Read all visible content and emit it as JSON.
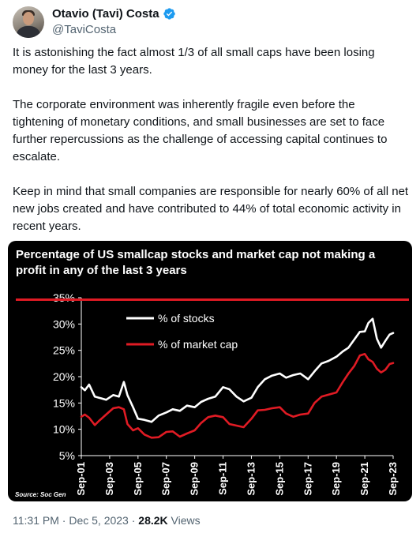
{
  "author": {
    "display_name": "Otavio (Tavi) Costa",
    "handle": "@TaviCosta",
    "verified_icon": "verified-badge-icon",
    "verified_color": "#1d9bf0"
  },
  "tweet": {
    "paragraphs": [
      "It is astonishing the fact almost 1/3 of all small caps have been losing money for the last 3 years.",
      "The corporate environment was inherently fragile even before the tightening of monetary conditions, and small businesses are set to face further repercussions as the challenge of accessing capital continues to escalate.",
      "Keep in mind that small companies are responsible for nearly 60% of all net new jobs created and have contributed to 44% of total economic activity in recent years."
    ]
  },
  "chart_data": {
    "type": "line",
    "title": "Percentage of US smallcap stocks and market cap not making a profit in any of the last 3 years",
    "xlabel": "",
    "ylabel": "",
    "source": "Source: Soc Gen",
    "ylim": [
      5,
      35
    ],
    "y_ticks": [
      "35%",
      "30%",
      "25%",
      "20%",
      "15%",
      "10%",
      "5%"
    ],
    "x_range": [
      2001.75,
      2023.75
    ],
    "x_ticks": [
      "Sep-01",
      "Sep-03",
      "Sep-05",
      "Sep-07",
      "Sep-09",
      "Sep-11",
      "Sep-13",
      "Sep-15",
      "Sep-17",
      "Sep-19",
      "Sep-21",
      "Sep-23"
    ],
    "grid": false,
    "legend_position": "top-left",
    "background": "#000000",
    "series": [
      {
        "name": "% of stocks",
        "color": "#ffffff",
        "x": [
          2001.75,
          2002.0,
          2002.3,
          2002.7,
          2003.0,
          2003.5,
          2004.0,
          2004.4,
          2004.75,
          2005.0,
          2005.4,
          2005.75,
          2006.2,
          2006.7,
          2007.2,
          2007.75,
          2008.2,
          2008.7,
          2009.2,
          2009.75,
          2010.2,
          2010.7,
          2011.2,
          2011.75,
          2012.2,
          2012.7,
          2013.2,
          2013.75,
          2014.2,
          2014.7,
          2015.2,
          2015.75,
          2016.2,
          2016.7,
          2017.2,
          2017.75,
          2018.2,
          2018.7,
          2019.2,
          2019.75,
          2020.2,
          2020.6,
          2021.0,
          2021.4,
          2021.75,
          2022.0,
          2022.3,
          2022.6,
          2022.9,
          2023.2,
          2023.5,
          2023.75
        ],
        "values": [
          18.0,
          17.4,
          18.5,
          16.2,
          16.0,
          15.6,
          16.5,
          16.2,
          19.0,
          16.5,
          14.2,
          12.0,
          11.8,
          11.4,
          12.6,
          13.2,
          13.8,
          13.5,
          14.5,
          14.2,
          15.2,
          15.8,
          16.2,
          18.0,
          17.6,
          16.2,
          15.3,
          16.0,
          18.0,
          19.5,
          20.2,
          20.6,
          19.8,
          20.3,
          20.6,
          19.5,
          21.0,
          22.5,
          23.0,
          23.8,
          24.8,
          25.5,
          27.0,
          28.5,
          28.6,
          30.2,
          31.0,
          27.2,
          25.5,
          26.8,
          28.0,
          28.3
        ]
      },
      {
        "name": "% of market cap",
        "color": "#e01b24",
        "x": [
          2001.75,
          2002.0,
          2002.3,
          2002.7,
          2003.0,
          2003.5,
          2004.0,
          2004.4,
          2004.75,
          2005.0,
          2005.4,
          2005.75,
          2006.2,
          2006.7,
          2007.2,
          2007.75,
          2008.2,
          2008.7,
          2009.2,
          2009.75,
          2010.2,
          2010.7,
          2011.2,
          2011.75,
          2012.2,
          2012.7,
          2013.2,
          2013.75,
          2014.2,
          2014.7,
          2015.2,
          2015.75,
          2016.2,
          2016.7,
          2017.2,
          2017.75,
          2018.2,
          2018.7,
          2019.2,
          2019.75,
          2020.2,
          2020.6,
          2021.0,
          2021.4,
          2021.75,
          2022.0,
          2022.3,
          2022.6,
          2022.9,
          2023.2,
          2023.5,
          2023.75
        ],
        "values": [
          12.4,
          12.8,
          12.2,
          10.8,
          11.6,
          12.8,
          14.0,
          14.2,
          13.8,
          11.0,
          9.8,
          10.2,
          9.0,
          8.4,
          8.5,
          9.5,
          9.6,
          8.6,
          9.2,
          9.8,
          11.2,
          12.3,
          12.6,
          12.3,
          11.0,
          10.7,
          10.4,
          12.0,
          13.6,
          13.7,
          14.0,
          14.2,
          13.0,
          12.4,
          12.8,
          13.0,
          15.0,
          16.2,
          16.6,
          17.0,
          19.0,
          20.6,
          22.0,
          24.0,
          24.3,
          23.3,
          22.8,
          21.5,
          20.8,
          21.3,
          22.4,
          22.6
        ]
      }
    ]
  },
  "footer": {
    "time": "11:31 PM",
    "separator": " · ",
    "date": "Dec 5, 2023",
    "views_count": "28.2K",
    "views_label": " Views"
  }
}
